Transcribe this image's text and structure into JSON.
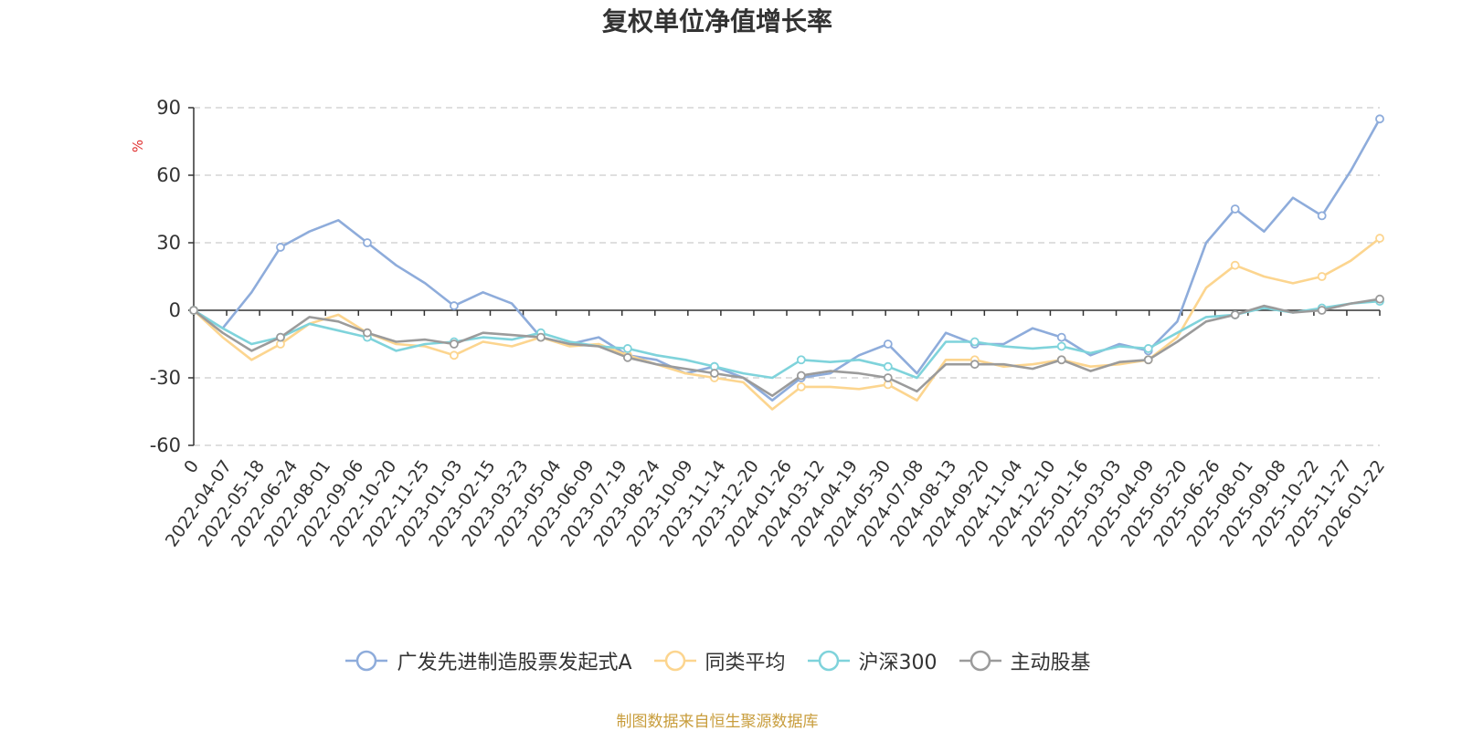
{
  "chart_data": {
    "type": "line",
    "title": "复权单位净值增长率",
    "ylabel": "%",
    "ylim": [
      -60,
      90
    ],
    "yticks": [
      90,
      60,
      30,
      0,
      -30,
      -60
    ],
    "x_ticks": [
      "0",
      "2022-04-07",
      "2022-05-18",
      "2022-06-24",
      "2022-08-01",
      "2022-09-06",
      "2022-10-20",
      "2022-11-25",
      "2023-01-03",
      "2023-02-15",
      "2023-03-23",
      "2023-05-04",
      "2023-06-09",
      "2023-07-19",
      "2023-08-24",
      "2023-10-09",
      "2023-11-14",
      "2023-12-20",
      "2024-01-26",
      "2024-03-12",
      "2024-04-19",
      "2024-05-30",
      "2024-07-08",
      "2024-08-13",
      "2024-09-20",
      "2024-11-04",
      "2024-12-10",
      "2025-01-16",
      "2025-03-03",
      "2025-04-09",
      "2025-05-20",
      "2025-06-26",
      "2025-08-01",
      "2025-09-08",
      "2025-10-22",
      "2025-11-27",
      "2026-01-22"
    ],
    "grid": true,
    "legend_position": "bottom",
    "series": [
      {
        "name": "广发先进制造股票发起式A",
        "color": "#8eacdb",
        "values": [
          0,
          -8,
          8,
          28,
          35,
          40,
          30,
          20,
          12,
          2,
          8,
          3,
          -12,
          -15,
          -12,
          -20,
          -22,
          -28,
          -25,
          -30,
          -40,
          -30,
          -28,
          -20,
          -15,
          -28,
          -10,
          -15,
          -15,
          -8,
          -12,
          -20,
          -15,
          -18,
          -5,
          30,
          45,
          35,
          50,
          42,
          62,
          85
        ]
      },
      {
        "name": "同类平均",
        "color": "#fcd58f",
        "values": [
          0,
          -12,
          -22,
          -15,
          -6,
          -2,
          -10,
          -15,
          -16,
          -20,
          -14,
          -16,
          -12,
          -16,
          -15,
          -20,
          -24,
          -28,
          -30,
          -32,
          -44,
          -34,
          -34,
          -35,
          -33,
          -40,
          -22,
          -22,
          -25,
          -24,
          -22,
          -25,
          -24,
          -22,
          -12,
          10,
          20,
          15,
          12,
          15,
          22,
          32
        ]
      },
      {
        "name": "沪深300",
        "color": "#7fd3db",
        "values": [
          0,
          -8,
          -15,
          -12,
          -6,
          -9,
          -12,
          -18,
          -15,
          -14,
          -12,
          -13,
          -10,
          -14,
          -16,
          -17,
          -20,
          -22,
          -25,
          -28,
          -30,
          -22,
          -23,
          -22,
          -25,
          -30,
          -14,
          -14,
          -16,
          -17,
          -16,
          -19,
          -16,
          -17,
          -10,
          -3,
          -2,
          1,
          -1,
          1,
          3,
          4
        ]
      },
      {
        "name": "主动股基",
        "color": "#9b9b9b",
        "values": [
          0,
          -10,
          -18,
          -12,
          -3,
          -5,
          -10,
          -14,
          -13,
          -15,
          -10,
          -11,
          -12,
          -15,
          -16,
          -21,
          -24,
          -26,
          -28,
          -30,
          -38,
          -29,
          -27,
          -28,
          -30,
          -36,
          -24,
          -24,
          -24,
          -26,
          -22,
          -27,
          -23,
          -22,
          -14,
          -5,
          -2,
          2,
          -1,
          0,
          3,
          5
        ]
      }
    ]
  },
  "source_note": "制图数据来自恒生聚源数据库"
}
